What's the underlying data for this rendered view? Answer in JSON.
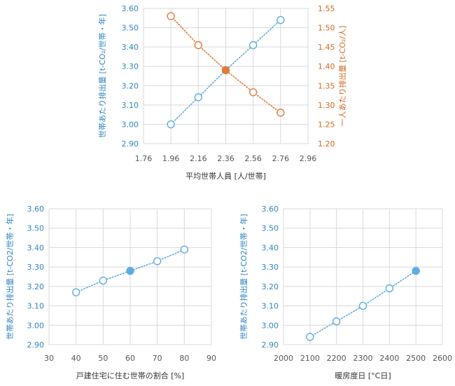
{
  "chart_data": [
    {
      "type": "scatter",
      "title": "",
      "xlabel": "平均世帯人員 [人/世帯]",
      "ylabel": "世帯あたり排出量 [t-CO₂/世帯・年]",
      "y2label": "一人あたり排出量 [t-CO₂/人]",
      "xlim": [
        1.76,
        2.96
      ],
      "ylim": [
        2.9,
        3.6
      ],
      "y2lim": [
        1.2,
        1.55
      ],
      "xticks": [
        "1.76",
        "1.96",
        "2.16",
        "2.36",
        "2.56",
        "2.76",
        "2.96"
      ],
      "yticks": [
        "2.90",
        "3.00",
        "3.10",
        "3.20",
        "3.30",
        "3.40",
        "3.50",
        "3.60"
      ],
      "y2ticks": [
        "1.20",
        "1.25",
        "1.30",
        "1.35",
        "1.40",
        "1.45",
        "1.50",
        "1.55"
      ],
      "series": [
        {
          "name": "世帯あたり排出量",
          "axis": "left",
          "color": "#5dade2",
          "x": [
            1.96,
            2.16,
            2.36,
            2.56,
            2.76
          ],
          "values": [
            3.0,
            3.14,
            3.28,
            3.41,
            3.54
          ],
          "highlight_index": 2
        },
        {
          "name": "一人あたり排出量",
          "axis": "right",
          "color": "#e07b39",
          "x": [
            1.96,
            2.16,
            2.36,
            2.56,
            2.76
          ],
          "values": [
            1.53,
            1.455,
            1.39,
            1.333,
            1.28
          ],
          "highlight_index": 2
        }
      ]
    },
    {
      "type": "scatter",
      "title": "",
      "xlabel": "戸建住宅に住む世帯の割合 [%]",
      "ylabel": "世帯あたり排出量 [t-CO2/世帯・年]",
      "xlim": [
        30,
        90
      ],
      "ylim": [
        2.9,
        3.6
      ],
      "xticks": [
        "30",
        "40",
        "50",
        "60",
        "70",
        "80",
        "90"
      ],
      "yticks": [
        "2.90",
        "3.00",
        "3.10",
        "3.20",
        "3.30",
        "3.40",
        "3.50",
        "3.60"
      ],
      "series": [
        {
          "name": "世帯あたり排出量",
          "axis": "left",
          "color": "#5dade2",
          "x": [
            40,
            50,
            60,
            70,
            80
          ],
          "values": [
            3.17,
            3.23,
            3.28,
            3.33,
            3.39
          ],
          "highlight_index": 2
        }
      ]
    },
    {
      "type": "scatter",
      "title": "",
      "xlabel": "暖房度日 [°C日]",
      "ylabel": "世帯あたり排出量 [t-CO2/世帯・年]",
      "xlim": [
        2000,
        2600
      ],
      "ylim": [
        2.9,
        3.6
      ],
      "xticks": [
        "2000",
        "2100",
        "2200",
        "2300",
        "2400",
        "2500",
        "2600"
      ],
      "yticks": [
        "2.90",
        "3.00",
        "3.10",
        "3.20",
        "3.30",
        "3.40",
        "3.50",
        "3.60"
      ],
      "series": [
        {
          "name": "世帯あたり排出量",
          "axis": "left",
          "color": "#5dade2",
          "x": [
            2100,
            2200,
            2300,
            2400,
            2500
          ],
          "values": [
            2.94,
            3.02,
            3.1,
            3.19,
            3.28
          ],
          "highlight_index": 4
        }
      ]
    }
  ]
}
